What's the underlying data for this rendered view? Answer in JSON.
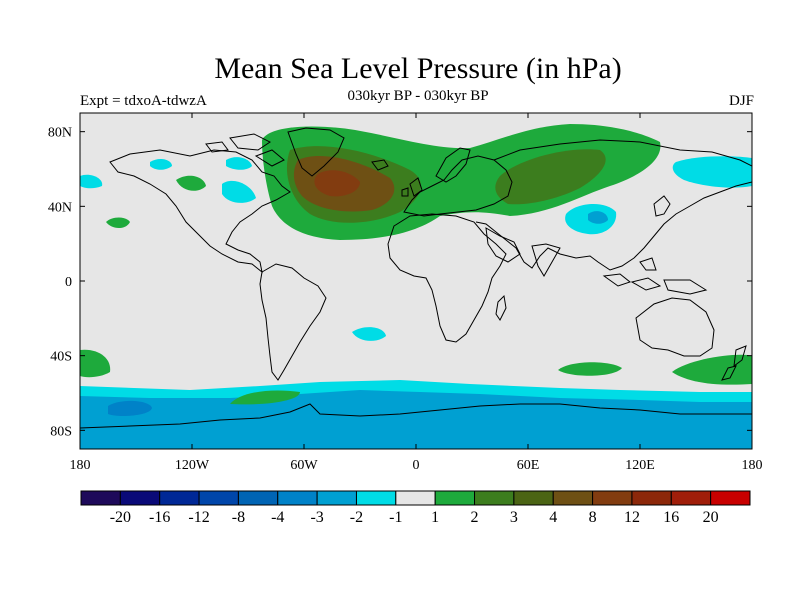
{
  "title": "Mean Sea Level Pressure (in hPa)",
  "subtitle": "030kyr BP - 030kyr BP",
  "left_label": "Expt = tdxoA-tdwzA",
  "right_label": "DJF",
  "map": {
    "lon_range": [
      -180,
      180
    ],
    "lat_range": [
      -90,
      90
    ],
    "background_color": "#e6e6e6",
    "x_ticks": [
      {
        "value": -180,
        "label": "180"
      },
      {
        "value": -120,
        "label": "120W"
      },
      {
        "value": -60,
        "label": "60W"
      },
      {
        "value": 0,
        "label": "0"
      },
      {
        "value": 60,
        "label": "60E"
      },
      {
        "value": 120,
        "label": "120E"
      },
      {
        "value": 180,
        "label": "180"
      }
    ],
    "y_ticks": [
      {
        "value": 80,
        "label": "80N"
      },
      {
        "value": 40,
        "label": "40N"
      },
      {
        "value": 0,
        "label": "0"
      },
      {
        "value": -40,
        "label": "40S"
      },
      {
        "value": -80,
        "label": "80S"
      }
    ]
  },
  "colorbar": {
    "colors": [
      "#1e0a5a",
      "#0a0a78",
      "#002896",
      "#0046aa",
      "#0064b4",
      "#0082c8",
      "#00a0d2",
      "#00dce6",
      "#e6e6e6",
      "#1eaa3c",
      "#3c7d1e",
      "#4b6414",
      "#6e5014",
      "#823c10",
      "#8c280a",
      "#a01e0a",
      "#c80000"
    ],
    "labels": [
      "-20",
      "-16",
      "-12",
      "-8",
      "-4",
      "-3",
      "-2",
      "-1",
      "1",
      "2",
      "3",
      "4",
      "8",
      "12",
      "16",
      "20"
    ]
  }
}
